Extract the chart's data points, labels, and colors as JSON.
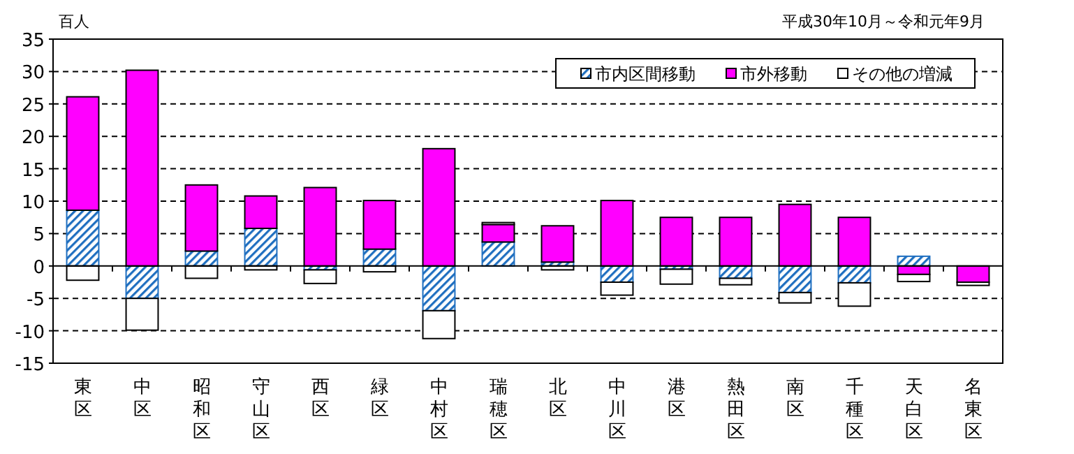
{
  "chart_data": {
    "type": "bar",
    "stacked": true,
    "ylabel": "百人",
    "subtitle": "平成30年10月～令和元年9月",
    "categories": [
      "東区",
      "中区",
      "昭和区",
      "守山区",
      "西区",
      "緑区",
      "中村区",
      "瑞穂区",
      "北区",
      "中川区",
      "港区",
      "熱田区",
      "南区",
      "千種区",
      "天白区",
      "名東区"
    ],
    "series": [
      {
        "name": "市内区間移動",
        "color": "#1f6fc0",
        "values": [
          8.6,
          -5.0,
          2.3,
          5.8,
          -0.6,
          2.6,
          -6.9,
          3.7,
          0.6,
          -2.5,
          -0.5,
          -1.9,
          -4.1,
          -2.6,
          1.5,
          0
        ]
      },
      {
        "name": "市外移動",
        "color": "#ff00ff",
        "values": [
          17.5,
          30.2,
          10.2,
          5.0,
          12.1,
          7.5,
          18.1,
          2.7,
          5.6,
          10.1,
          7.5,
          7.5,
          9.5,
          7.5,
          -1.3,
          -2.5
        ]
      },
      {
        "name": "その他の増減",
        "color": "#ffffff",
        "values": [
          -2.2,
          -4.9,
          -1.9,
          -0.6,
          -2.1,
          -0.9,
          -4.3,
          0.3,
          -0.6,
          -2.0,
          -2.3,
          -1.0,
          -1.6,
          -3.6,
          -1.1,
          -0.5
        ]
      }
    ],
    "ylim": [
      -15,
      35
    ],
    "yticks": [
      -15,
      -10,
      -5,
      0,
      5,
      10,
      15,
      20,
      25,
      30,
      35
    ],
    "grid": "y",
    "legend": "top right"
  }
}
